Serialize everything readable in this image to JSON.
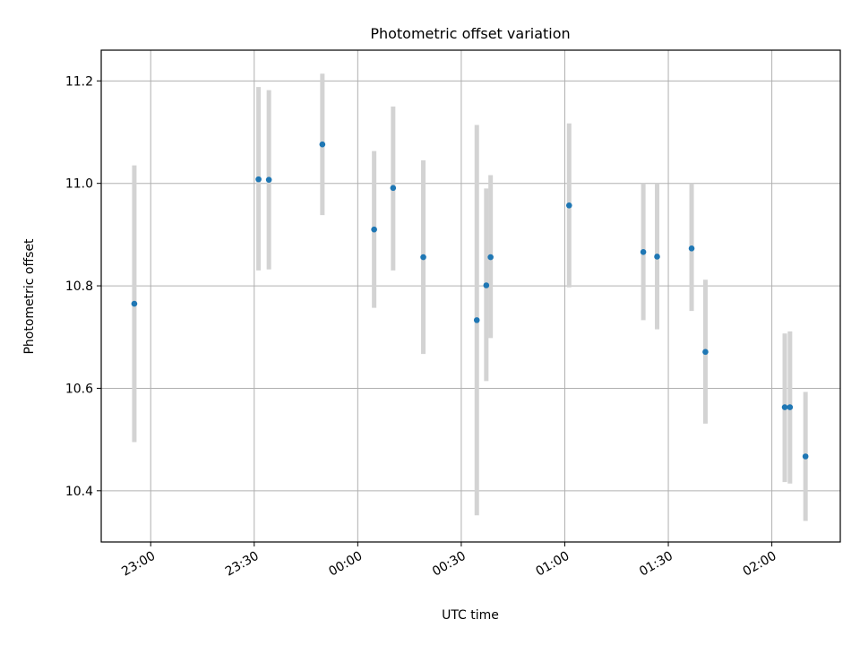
{
  "chart_data": {
    "type": "scatter",
    "title": "Photometric offset variation",
    "xlabel": "UTC time",
    "ylabel": "Photometric offset",
    "x_ticks": [
      "23:00",
      "23:30",
      "00:00",
      "00:30",
      "01:00",
      "01:30",
      "02:00"
    ],
    "y_ticks": [
      "10.4",
      "10.6",
      "10.8",
      "11.0",
      "11.2"
    ],
    "xlim": [
      "22:45:40",
      "02:19:50"
    ],
    "ylim": [
      10.3,
      11.26
    ],
    "grid": true,
    "colors": {
      "point": "#1f77b4",
      "errorbar": "#d3d3d3",
      "grid": "#b0b0b0"
    },
    "points": [
      {
        "x": "22:55:15",
        "y": 10.765,
        "ylo": 10.495,
        "yhi": 11.035
      },
      {
        "x": "23:31:15",
        "y": 11.008,
        "ylo": 10.83,
        "yhi": 11.188
      },
      {
        "x": "23:34:15",
        "y": 11.007,
        "ylo": 10.832,
        "yhi": 11.182
      },
      {
        "x": "23:49:45",
        "y": 11.076,
        "ylo": 10.938,
        "yhi": 11.214
      },
      {
        "x": "00:04:45",
        "y": 10.91,
        "ylo": 10.757,
        "yhi": 11.063
      },
      {
        "x": "00:10:15",
        "y": 10.991,
        "ylo": 10.83,
        "yhi": 11.15
      },
      {
        "x": "00:19:00",
        "y": 10.856,
        "ylo": 10.667,
        "yhi": 11.045
      },
      {
        "x": "00:34:30",
        "y": 10.733,
        "ylo": 10.352,
        "yhi": 11.114
      },
      {
        "x": "00:37:15",
        "y": 10.801,
        "ylo": 10.614,
        "yhi": 10.99
      },
      {
        "x": "00:38:30",
        "y": 10.856,
        "ylo": 10.698,
        "yhi": 11.016
      },
      {
        "x": "01:01:15",
        "y": 10.957,
        "ylo": 10.797,
        "yhi": 11.117
      },
      {
        "x": "01:22:45",
        "y": 10.866,
        "ylo": 10.733,
        "yhi": 11.0
      },
      {
        "x": "01:26:45",
        "y": 10.857,
        "ylo": 10.715,
        "yhi": 11.0
      },
      {
        "x": "01:36:45",
        "y": 10.873,
        "ylo": 10.751,
        "yhi": 11.0
      },
      {
        "x": "01:40:45",
        "y": 10.671,
        "ylo": 10.531,
        "yhi": 10.812
      },
      {
        "x": "02:03:45",
        "y": 10.563,
        "ylo": 10.417,
        "yhi": 10.707
      },
      {
        "x": "02:05:15",
        "y": 10.563,
        "ylo": 10.414,
        "yhi": 10.711
      },
      {
        "x": "02:09:45",
        "y": 10.467,
        "ylo": 10.341,
        "yhi": 10.593
      }
    ]
  }
}
